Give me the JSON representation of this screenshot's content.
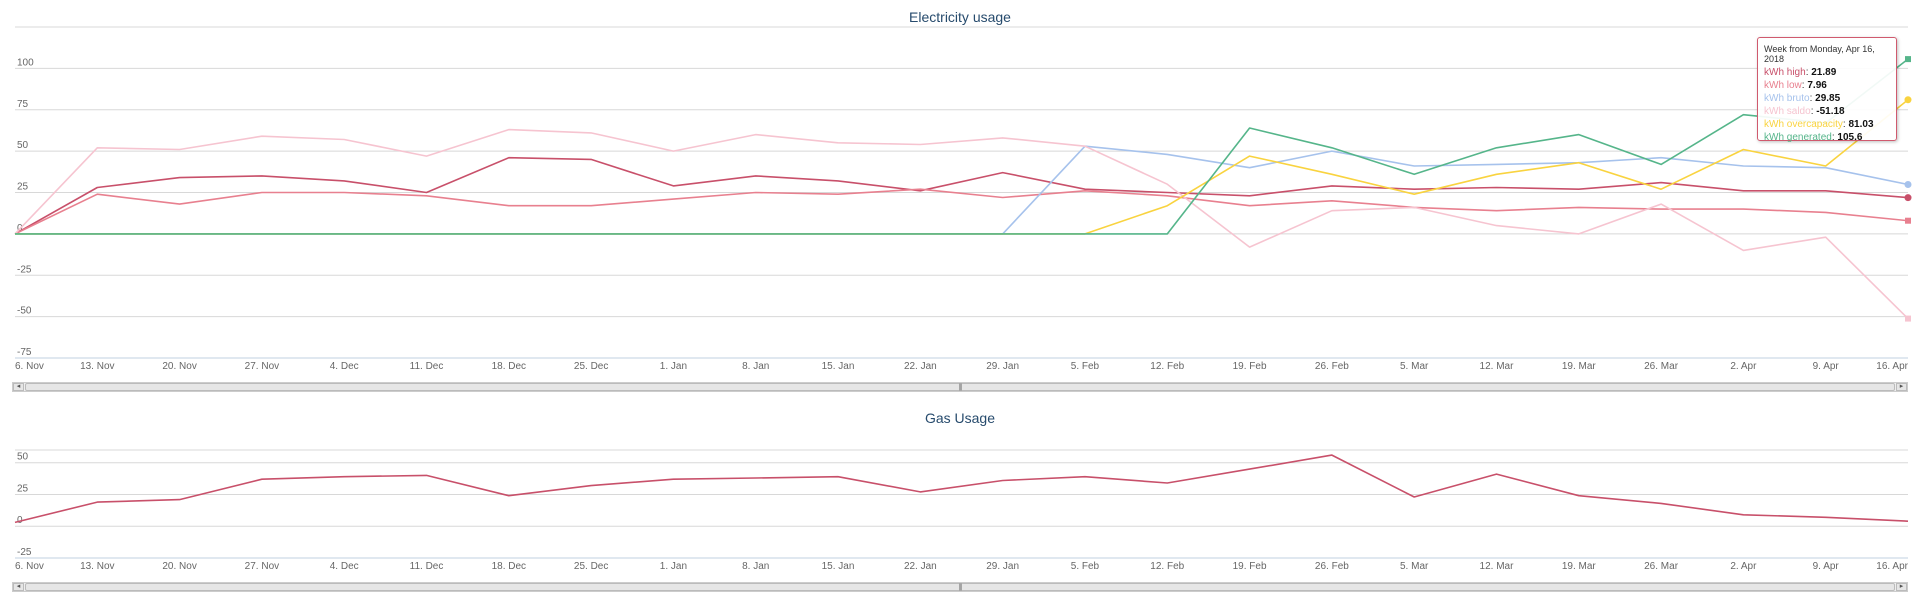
{
  "chart_data": [
    {
      "type": "line",
      "title": "Electricity usage",
      "categories": [
        "6. Nov",
        "13. Nov",
        "20. Nov",
        "27. Nov",
        "4. Dec",
        "11. Dec",
        "18. Dec",
        "25. Dec",
        "1. Jan",
        "8. Jan",
        "15. Jan",
        "22. Jan",
        "29. Jan",
        "5. Feb",
        "12. Feb",
        "19. Feb",
        "26. Feb",
        "5. Mar",
        "12. Mar",
        "19. Mar",
        "26. Mar",
        "2. Apr",
        "9. Apr",
        "16. Apr"
      ],
      "yticks": [
        -75,
        -50,
        -25,
        0,
        25,
        50,
        75,
        100
      ],
      "ylim": [
        -75,
        125
      ],
      "grid": true,
      "series": [
        {
          "name": "kWh high",
          "color": "#c8506a",
          "values": [
            0,
            28,
            34,
            35,
            32,
            25,
            46,
            45,
            29,
            35,
            32,
            26,
            37,
            27,
            25,
            23,
            29,
            27,
            28,
            27,
            31,
            26,
            26,
            21.89
          ]
        },
        {
          "name": "kWh low",
          "color": "#e8808f",
          "values": [
            0,
            24,
            18,
            25,
            25,
            23,
            17,
            17,
            21,
            25,
            24,
            27,
            22,
            26,
            23,
            17,
            20,
            16,
            14,
            16,
            15,
            15,
            13,
            7.96
          ]
        },
        {
          "name": "kWh bruto",
          "color": "#a6c2ec",
          "values": [
            0,
            0,
            0,
            0,
            0,
            0,
            0,
            0,
            0,
            0,
            0,
            0,
            0,
            53,
            48,
            40,
            50,
            41,
            42,
            43,
            46,
            41,
            40,
            29.85
          ]
        },
        {
          "name": "kWh saldo",
          "color": "#f6c4d0",
          "values": [
            0,
            52,
            51,
            59,
            57,
            47,
            63,
            61,
            50,
            60,
            55,
            54,
            58,
            53,
            30,
            -8,
            14,
            16,
            5,
            0,
            18,
            -10,
            -2,
            -51.18
          ]
        },
        {
          "name": "kWh overcapacity",
          "color": "#f9d33f",
          "values": [
            0,
            0,
            0,
            0,
            0,
            0,
            0,
            0,
            0,
            0,
            0,
            0,
            0,
            0,
            17,
            47,
            36,
            24,
            36,
            43,
            27,
            51,
            41,
            81.03
          ]
        },
        {
          "name": "kWh generated",
          "color": "#55b58a",
          "values": [
            0,
            0,
            0,
            0,
            0,
            0,
            0,
            0,
            0,
            0,
            0,
            0,
            0,
            0,
            0,
            64,
            52,
            36,
            52,
            60,
            42,
            72,
            67,
            105.6
          ]
        }
      ]
    },
    {
      "type": "line",
      "title": "Gas Usage",
      "categories": [
        "6. Nov",
        "13. Nov",
        "20. Nov",
        "27. Nov",
        "4. Dec",
        "11. Dec",
        "18. Dec",
        "25. Dec",
        "1. Jan",
        "8. Jan",
        "15. Jan",
        "22. Jan",
        "29. Jan",
        "5. Feb",
        "12. Feb",
        "19. Feb",
        "26. Feb",
        "5. Mar",
        "12. Mar",
        "19. Mar",
        "26. Mar",
        "2. Apr",
        "9. Apr",
        "16. Apr"
      ],
      "yticks": [
        -25,
        0,
        25,
        50
      ],
      "ylim": [
        -25,
        60
      ],
      "grid": true,
      "series": [
        {
          "color": "#c8506a",
          "values": [
            3,
            19,
            21,
            37,
            39,
            40,
            24,
            32,
            37,
            38,
            39,
            27,
            36,
            39,
            34,
            45,
            56,
            23,
            41,
            24,
            18,
            9,
            7,
            4
          ]
        }
      ]
    }
  ],
  "tooltip": {
    "header": "Week from Monday, Apr 16, 2018",
    "rows": [
      {
        "label": "kWh high",
        "value": "21.89",
        "color": "#c8506a"
      },
      {
        "label": "kWh low",
        "value": "7.96",
        "color": "#e8808f"
      },
      {
        "label": "kWh bruto",
        "value": "29.85",
        "color": "#a6c2ec"
      },
      {
        "label": "kWh saldo",
        "value": "-51.18",
        "color": "#f6c4d0"
      },
      {
        "label": "kWh overcapacity",
        "value": "81.03",
        "color": "#f9d33f"
      },
      {
        "label": "kWh generated",
        "value": "105.6",
        "color": "#55b58a"
      }
    ]
  },
  "scrollbar_grip": "|||"
}
